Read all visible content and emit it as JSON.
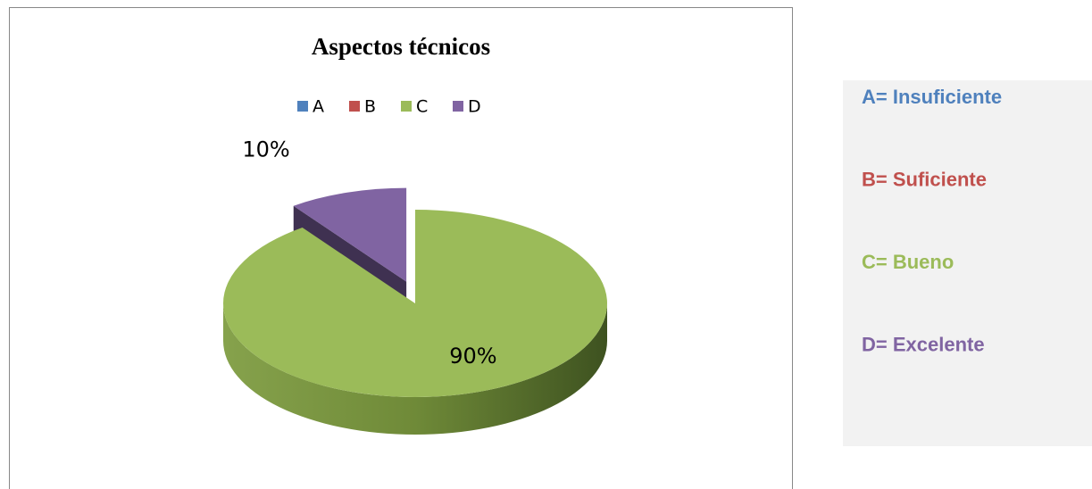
{
  "chart_data": {
    "type": "pie",
    "title": "Aspectos técnicos",
    "categories": [
      "A",
      "B",
      "C",
      "D"
    ],
    "values": [
      0,
      0,
      90,
      10
    ],
    "value_labels": [
      null,
      null,
      "90%",
      "10%"
    ],
    "colors": [
      "#4f81bd",
      "#c0504d",
      "#9bbb59",
      "#8064a2"
    ],
    "exploded": "D",
    "legend": "top"
  },
  "definitions": [
    "A= Insuficiente",
    "B= Suficiente",
    "C= Bueno",
    "D= Excelente"
  ]
}
